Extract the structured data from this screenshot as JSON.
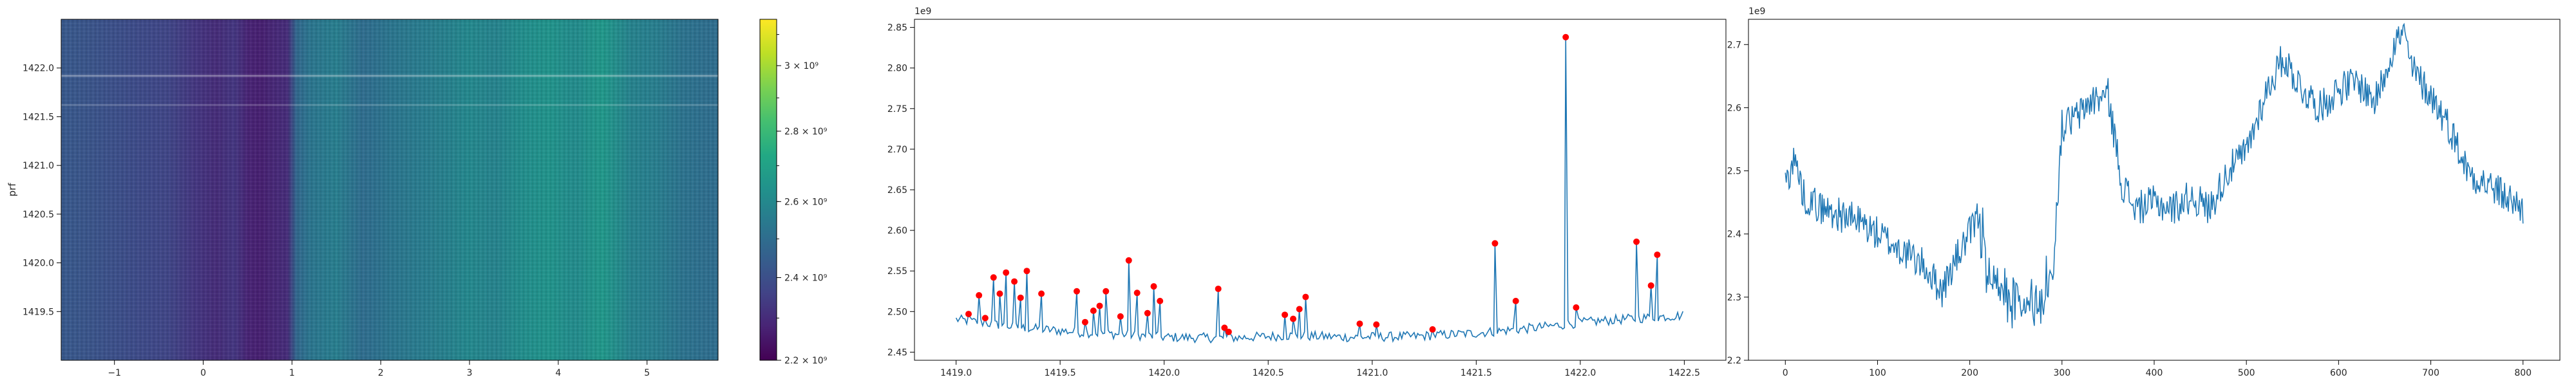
{
  "chart_data": [
    {
      "type": "heatmap",
      "title": "",
      "xlabel": "",
      "ylabel": "prf",
      "xlim": [
        -1.6,
        5.8
      ],
      "ylim": [
        1419.0,
        1422.5
      ],
      "xticks": [
        "−1",
        "0",
        "1",
        "2",
        "3",
        "4",
        "5"
      ],
      "xtick_values": [
        -1,
        0,
        1,
        2,
        3,
        4,
        5
      ],
      "yticks": [
        "1419.5",
        "1420.0",
        "1420.5",
        "1421.0",
        "1421.5",
        "1422.0"
      ],
      "ytick_values": [
        1419.5,
        1420.0,
        1420.5,
        1421.0,
        1421.5,
        1422.0
      ],
      "colormap": "viridis",
      "column_profile": {
        "x": [
          -1.6,
          -1.2,
          -0.8,
          -0.4,
          -0.1,
          0.15,
          0.35,
          0.5,
          0.65,
          0.8,
          0.95,
          1.05,
          1.2,
          1.5,
          1.8,
          2.1,
          2.4,
          2.7,
          3.0,
          3.3,
          3.6,
          3.9,
          4.2,
          4.5,
          4.8,
          5.1,
          5.4,
          5.8
        ],
        "values": [
          2430000000.0,
          2410000000.0,
          2390000000.0,
          2370000000.0,
          2330000000.0,
          2300000000.0,
          2330000000.0,
          2280000000.0,
          2270000000.0,
          2290000000.0,
          2300000000.0,
          2480000000.0,
          2530000000.0,
          2560000000.0,
          2500000000.0,
          2530000000.0,
          2550000000.0,
          2570000000.0,
          2600000000.0,
          2580000000.0,
          2620000000.0,
          2640000000.0,
          2610000000.0,
          2660000000.0,
          2580000000.0,
          2560000000.0,
          2520000000.0,
          2500000000.0
        ]
      },
      "bright_rows": [
        1421.92,
        1421.62
      ],
      "colorbar": {
        "range": [
          2200000000.0,
          3150000000.0
        ],
        "ticks": [
          "2.2 × 10⁹",
          "2.4 × 10⁹",
          "2.6 × 10⁹",
          "2.8 × 10⁹",
          "3 × 10⁹"
        ],
        "tick_values": [
          2200000000.0,
          2400000000.0,
          2600000000.0,
          2800000000.0,
          3000000000.0
        ],
        "scale": "log"
      }
    },
    {
      "type": "line",
      "title": "",
      "xlabel": "",
      "ylabel": "",
      "offset_text": "1e9",
      "xlim": [
        1418.8,
        1422.7
      ],
      "ylim": [
        2440000000.0,
        2860000000.0
      ],
      "xticks": [
        "1419.0",
        "1419.5",
        "1420.0",
        "1420.5",
        "1421.0",
        "1421.5",
        "1422.0",
        "1422.5"
      ],
      "xtick_values": [
        1419.0,
        1419.5,
        1420.0,
        1420.5,
        1421.0,
        1421.5,
        1422.0,
        1422.5
      ],
      "yticks": [
        "2.45",
        "2.50",
        "2.55",
        "2.60",
        "2.65",
        "2.70",
        "2.75",
        "2.80",
        "2.85"
      ],
      "ytick_values": [
        2450000000.0,
        2500000000.0,
        2550000000.0,
        2600000000.0,
        2650000000.0,
        2700000000.0,
        2750000000.0,
        2800000000.0,
        2850000000.0
      ],
      "line_color": "#1f77b4",
      "marker_color": "#ff0000",
      "baseline": {
        "x": [
          1419.0,
          1419.3,
          1419.6,
          1419.9,
          1420.0,
          1420.3,
          1420.6,
          1420.9,
          1421.2,
          1421.5,
          1421.8,
          1422.0,
          1422.2,
          1422.5
        ],
        "y": [
          2488000000.0,
          2478000000.0,
          2472000000.0,
          2468000000.0,
          2466000000.0,
          2465000000.0,
          2468000000.0,
          2466000000.0,
          2467000000.0,
          2471000000.0,
          2478000000.0,
          2484000000.0,
          2488000000.0,
          2493000000.0
        ]
      },
      "peaks": {
        "x": [
          1419.06,
          1419.11,
          1419.14,
          1419.18,
          1419.21,
          1419.24,
          1419.28,
          1419.31,
          1419.34,
          1419.41,
          1419.58,
          1419.62,
          1419.66,
          1419.69,
          1419.72,
          1419.79,
          1419.83,
          1419.87,
          1419.92,
          1419.95,
          1419.98,
          1420.26,
          1420.29,
          1420.31,
          1420.58,
          1420.62,
          1420.65,
          1420.68,
          1420.94,
          1421.02,
          1421.29,
          1421.59,
          1421.69,
          1421.93,
          1421.98,
          1422.27,
          1422.34,
          1422.37
        ],
        "y": [
          2497000000.0,
          2520000000.0,
          2492000000.0,
          2542000000.0,
          2522000000.0,
          2548000000.0,
          2537000000.0,
          2517000000.0,
          2550000000.0,
          2522000000.0,
          2525000000.0,
          2487000000.0,
          2501000000.0,
          2507000000.0,
          2525000000.0,
          2494000000.0,
          2563000000.0,
          2523000000.0,
          2498000000.0,
          2531000000.0,
          2513000000.0,
          2528000000.0,
          2480000000.0,
          2475000000.0,
          2496000000.0,
          2491000000.0,
          2503000000.0,
          2518000000.0,
          2485000000.0,
          2484000000.0,
          2478000000.0,
          2584000000.0,
          2513000000.0,
          2838000000.0,
          2505000000.0,
          2586000000.0,
          2532000000.0,
          2570000000.0
        ]
      }
    },
    {
      "type": "line",
      "title": "",
      "xlabel": "",
      "ylabel": "",
      "offset_text": "1e9",
      "xlim": [
        -40,
        840
      ],
      "ylim": [
        2200000000.0,
        2740000000.0
      ],
      "xticks": [
        "0",
        "100",
        "200",
        "300",
        "400",
        "500",
        "600",
        "700",
        "800"
      ],
      "xtick_values": [
        0,
        100,
        200,
        300,
        400,
        500,
        600,
        700,
        800
      ],
      "yticks": [
        "2.2",
        "2.3",
        "2.4",
        "2.5",
        "2.6",
        "2.7"
      ],
      "ytick_values": [
        2200000000.0,
        2300000000.0,
        2400000000.0,
        2500000000.0,
        2600000000.0,
        2700000000.0
      ],
      "line_color": "#1f77b4",
      "n_points": 800,
      "trend": {
        "x": [
          0,
          10,
          20,
          40,
          60,
          80,
          100,
          120,
          150,
          170,
          185,
          200,
          210,
          220,
          240,
          260,
          280,
          290,
          300,
          320,
          330,
          350,
          365,
          380,
          400,
          420,
          440,
          460,
          480,
          500,
          520,
          540,
          560,
          580,
          600,
          620,
          640,
          660,
          670,
          680,
          700,
          720,
          740,
          760,
          780,
          800
        ],
        "y": [
          2480000000.0,
          2520000000.0,
          2460000000.0,
          2440000000.0,
          2430000000.0,
          2420000000.0,
          2400000000.0,
          2380000000.0,
          2350000000.0,
          2310000000.0,
          2360000000.0,
          2400000000.0,
          2430000000.0,
          2330000000.0,
          2290000000.0,
          2280000000.0,
          2310000000.0,
          2340000000.0,
          2570000000.0,
          2590000000.0,
          2610000000.0,
          2620000000.0,
          2480000000.0,
          2440000000.0,
          2450000000.0,
          2440000000.0,
          2460000000.0,
          2440000000.0,
          2500000000.0,
          2530000000.0,
          2620000000.0,
          2680000000.0,
          2630000000.0,
          2600000000.0,
          2630000000.0,
          2640000000.0,
          2610000000.0,
          2700000000.0,
          2720000000.0,
          2660000000.0,
          2620000000.0,
          2570000000.0,
          2500000000.0,
          2480000000.0,
          2460000000.0,
          2440000000.0
        ]
      }
    }
  ]
}
